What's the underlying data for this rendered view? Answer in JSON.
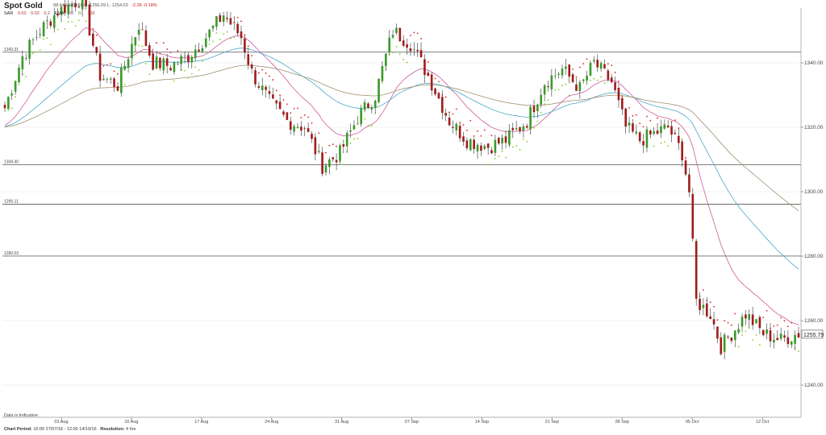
{
  "header": {
    "instrument": "Spot Gold",
    "quote_line": "08:44 14/10/16  H: 1256.09  L: 1254.03",
    "change": "-2.39  -0.18%",
    "indicators": [
      "SAR",
      "0.02",
      "0.02",
      "0.2",
      "EMA",
      "20",
      "50",
      "100"
    ]
  },
  "footer": {
    "indicative": "Data is Indicative",
    "period_label": "Chart Period:",
    "period_value": "16:00 27/07/16 - 12:00 14/10/16",
    "resolution_label": "Resolution:",
    "resolution_value": "4 hrs"
  },
  "colors": {
    "bull": "#3a9a2a",
    "bear": "#a01c1c",
    "ema20": "#d05a9a",
    "ema50": "#4aa8c8",
    "ema100": "#a09070",
    "sar_bear": "#e02020",
    "sar_bull": "#80d020",
    "hline": "#555555",
    "grid": "#f2f2f2"
  },
  "chart_data": {
    "type": "candlestick",
    "title": "Spot Gold",
    "x_ticks": [
      "03 Aug",
      "10 Aug",
      "17 Aug",
      "24 Aug",
      "31 Aug",
      "07 Sep",
      "14 Sep",
      "21 Sep",
      "28 Sep",
      "05 Oct",
      "12 Oct"
    ],
    "y_ticks": [
      "1240.00",
      "1260.00",
      "1280.00",
      "1300.00",
      "1320.00",
      "1340.00"
    ],
    "ylim": [
      1230,
      1357
    ],
    "current_price": "1255.79",
    "levels": [
      {
        "label": "1343.31",
        "value": 1343.31
      },
      {
        "label": "1308.40",
        "value": 1308.4
      },
      {
        "label": "1296.11",
        "value": 1296.11
      },
      {
        "label": "1280.03",
        "value": 1280.03
      }
    ],
    "close_path": [
      [
        0,
        1326
      ],
      [
        5,
        1342
      ],
      [
        10,
        1350
      ],
      [
        15,
        1356
      ],
      [
        22,
        1360
      ],
      [
        27,
        1336
      ],
      [
        32,
        1333
      ],
      [
        38,
        1352
      ],
      [
        42,
        1340
      ],
      [
        47,
        1339
      ],
      [
        52,
        1342
      ],
      [
        57,
        1348
      ],
      [
        62,
        1355
      ],
      [
        67,
        1348
      ],
      [
        70,
        1337
      ],
      [
        75,
        1328
      ],
      [
        80,
        1322
      ],
      [
        85,
        1320
      ],
      [
        90,
        1308
      ],
      [
        95,
        1312
      ],
      [
        100,
        1323
      ],
      [
        105,
        1330
      ],
      [
        110,
        1350
      ],
      [
        115,
        1346
      ],
      [
        120,
        1336
      ],
      [
        126,
        1322
      ],
      [
        131,
        1316
      ],
      [
        137,
        1314
      ],
      [
        142,
        1316
      ],
      [
        148,
        1322
      ],
      [
        153,
        1334
      ],
      [
        158,
        1338
      ],
      [
        163,
        1332
      ],
      [
        167,
        1340
      ],
      [
        172,
        1334
      ],
      [
        176,
        1320
      ],
      [
        180,
        1316
      ],
      [
        184,
        1318
      ],
      [
        188,
        1320
      ],
      [
        192,
        1312
      ],
      [
        194,
        1300
      ],
      [
        196,
        1266
      ],
      [
        200,
        1262
      ],
      [
        203,
        1252
      ],
      [
        206,
        1256
      ],
      [
        210,
        1262
      ],
      [
        215,
        1256
      ],
      [
        220,
        1254
      ],
      [
        225,
        1256
      ]
    ],
    "series": [
      {
        "name": "EMA 20"
      },
      {
        "name": "EMA 50"
      },
      {
        "name": "EMA 100"
      },
      {
        "name": "SAR"
      }
    ]
  }
}
